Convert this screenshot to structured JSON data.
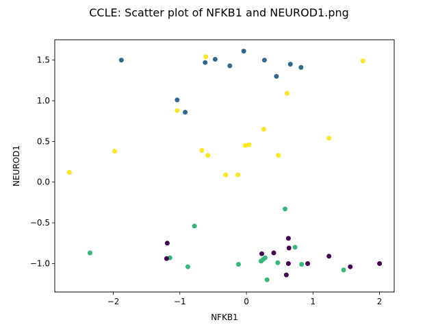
{
  "chart_data": {
    "type": "scatter",
    "title": "CCLE: Scatter plot of NFKB1 and NEUROD1.png",
    "xlabel": "NFKB1",
    "ylabel": "NEUROD1",
    "xlim": [
      -2.88,
      2.22
    ],
    "ylim": [
      -1.35,
      1.75
    ],
    "x_ticks": [
      -2,
      -1,
      0,
      1,
      2
    ],
    "x_tick_labels": [
      "−2",
      "−1",
      "0",
      "1",
      "2"
    ],
    "y_ticks": [
      -1.0,
      -0.5,
      0.0,
      0.5,
      1.0,
      1.5
    ],
    "y_tick_labels": [
      "−1.0",
      "−0.5",
      "0.0",
      "0.5",
      "1.0",
      "1.5"
    ],
    "grid": false,
    "legend": "none",
    "series": [
      {
        "color": "#31688e",
        "points": [
          [
            -1.88,
            1.5
          ],
          [
            -0.62,
            1.47
          ],
          [
            -0.47,
            1.51
          ],
          [
            -0.25,
            1.43
          ],
          [
            -0.04,
            1.61
          ],
          [
            0.27,
            1.5
          ],
          [
            0.45,
            1.3
          ],
          [
            0.66,
            1.45
          ],
          [
            0.82,
            1.41
          ],
          [
            -1.04,
            1.01
          ],
          [
            -0.92,
            0.86
          ]
        ]
      },
      {
        "color": "#fde725",
        "points": [
          [
            -0.61,
            1.54
          ],
          [
            1.75,
            1.49
          ],
          [
            0.61,
            1.09
          ],
          [
            -1.04,
            0.88
          ],
          [
            0.26,
            0.65
          ],
          [
            1.24,
            0.54
          ],
          [
            0.04,
            0.46
          ],
          [
            -0.02,
            0.45
          ],
          [
            -0.67,
            0.39
          ],
          [
            -1.98,
            0.38
          ],
          [
            -0.58,
            0.33
          ],
          [
            0.48,
            0.33
          ],
          [
            -2.66,
            0.12
          ],
          [
            -0.31,
            0.09
          ],
          [
            -0.13,
            0.09
          ]
        ]
      },
      {
        "color": "#35b779",
        "points": [
          [
            0.58,
            -0.33
          ],
          [
            -0.78,
            -0.54
          ],
          [
            -2.35,
            -0.87
          ],
          [
            0.73,
            -0.8
          ],
          [
            -1.15,
            -0.93
          ],
          [
            0.22,
            -0.97
          ],
          [
            0.25,
            -0.95
          ],
          [
            0.28,
            -0.93
          ],
          [
            -0.12,
            -1.01
          ],
          [
            0.47,
            -0.99
          ],
          [
            0.83,
            -1.01
          ],
          [
            -0.88,
            -1.04
          ],
          [
            1.46,
            -1.08
          ],
          [
            0.31,
            -1.2
          ]
        ]
      },
      {
        "color": "#440154",
        "points": [
          [
            -1.19,
            -0.75
          ],
          [
            0.63,
            -0.69
          ],
          [
            0.64,
            -0.81
          ],
          [
            0.41,
            -0.87
          ],
          [
            0.23,
            -0.88
          ],
          [
            1.24,
            -0.91
          ],
          [
            -1.2,
            -0.94
          ],
          [
            0.63,
            -1.0
          ],
          [
            0.92,
            -1.0
          ],
          [
            2.0,
            -1.0
          ],
          [
            1.56,
            -1.04
          ],
          [
            0.6,
            -1.14
          ]
        ]
      }
    ]
  }
}
